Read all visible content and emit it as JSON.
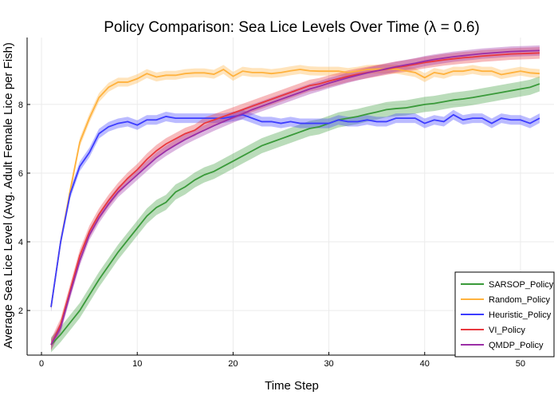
{
  "chart_data": {
    "type": "line",
    "title": "Policy Comparison: Sea Lice Levels Over Time (λ = 0.6)",
    "xlabel": "Time Step",
    "ylabel": "Average Sea Lice Level (Avg. Adult Female Lice per Fish)",
    "xlim": [
      -1.5,
      53.5
    ],
    "ylim": [
      0.7,
      9.95
    ],
    "xticks": [
      0,
      10,
      20,
      30,
      40,
      50
    ],
    "yticks": [
      2,
      4,
      6,
      8
    ],
    "grid": true,
    "legend_position": "bottom-right",
    "x_start": 1,
    "series": [
      {
        "name": "SARSOP_Policy",
        "color": "#3a9a3a",
        "band": 0.22,
        "values": [
          1.0,
          1.3,
          1.65,
          2.0,
          2.45,
          2.9,
          3.3,
          3.7,
          4.05,
          4.4,
          4.75,
          5.0,
          5.15,
          5.45,
          5.6,
          5.8,
          5.95,
          6.05,
          6.2,
          6.35,
          6.5,
          6.65,
          6.8,
          6.9,
          7.0,
          7.1,
          7.2,
          7.3,
          7.35,
          7.45,
          7.55,
          7.6,
          7.65,
          7.72,
          7.78,
          7.85,
          7.88,
          7.9,
          7.95,
          8.0,
          8.03,
          8.08,
          8.13,
          8.16,
          8.2,
          8.25,
          8.3,
          8.35,
          8.4,
          8.45,
          8.5,
          8.6
        ]
      },
      {
        "name": "Random_Policy",
        "color": "#ffb23e",
        "band": 0.13,
        "values": [
          2.1,
          4.0,
          5.5,
          6.9,
          7.6,
          8.2,
          8.5,
          8.65,
          8.65,
          8.75,
          8.9,
          8.8,
          8.85,
          8.85,
          8.9,
          8.92,
          8.92,
          8.88,
          9.02,
          8.82,
          8.97,
          8.93,
          8.93,
          8.9,
          8.93,
          8.98,
          9.02,
          8.98,
          8.97,
          8.97,
          8.97,
          8.93,
          8.97,
          9.02,
          9.03,
          9.03,
          9.03,
          8.98,
          8.93,
          8.78,
          8.93,
          8.88,
          8.97,
          8.97,
          9.02,
          8.97,
          8.97,
          8.87,
          8.92,
          8.97,
          8.92,
          8.9
        ]
      },
      {
        "name": "Heuristic_Policy",
        "color": "#3c3cff",
        "band": 0.14,
        "values": [
          2.1,
          4.0,
          5.4,
          6.2,
          6.6,
          7.15,
          7.35,
          7.45,
          7.5,
          7.4,
          7.55,
          7.55,
          7.65,
          7.6,
          7.6,
          7.6,
          7.6,
          7.6,
          7.6,
          7.65,
          7.7,
          7.6,
          7.5,
          7.5,
          7.45,
          7.5,
          7.45,
          7.45,
          7.45,
          7.45,
          7.55,
          7.5,
          7.5,
          7.55,
          7.5,
          7.5,
          7.6,
          7.6,
          7.6,
          7.45,
          7.55,
          7.5,
          7.7,
          7.55,
          7.6,
          7.6,
          7.45,
          7.6,
          7.55,
          7.55,
          7.45,
          7.6
        ]
      },
      {
        "name": "VI_Policy",
        "color": "#e8383e",
        "band": 0.17,
        "values": [
          1.0,
          1.6,
          2.6,
          3.6,
          4.3,
          4.8,
          5.2,
          5.55,
          5.85,
          6.1,
          6.4,
          6.65,
          6.85,
          7.0,
          7.15,
          7.25,
          7.45,
          7.55,
          7.65,
          7.75,
          7.85,
          7.95,
          8.05,
          8.15,
          8.25,
          8.35,
          8.45,
          8.55,
          8.6,
          8.68,
          8.75,
          8.82,
          8.88,
          8.93,
          8.98,
          9.03,
          9.08,
          9.12,
          9.17,
          9.22,
          9.26,
          9.3,
          9.33,
          9.36,
          9.38,
          9.41,
          9.43,
          9.45,
          9.47,
          9.48,
          9.49,
          9.5
        ]
      },
      {
        "name": "QMDP_Policy",
        "color": "#9b2fa6",
        "band": 0.15,
        "values": [
          1.0,
          1.5,
          2.5,
          3.45,
          4.2,
          4.7,
          5.1,
          5.45,
          5.7,
          5.95,
          6.2,
          6.45,
          6.65,
          6.82,
          6.98,
          7.12,
          7.25,
          7.38,
          7.5,
          7.62,
          7.73,
          7.85,
          7.95,
          8.05,
          8.15,
          8.25,
          8.35,
          8.45,
          8.53,
          8.62,
          8.7,
          8.78,
          8.85,
          8.92,
          8.98,
          9.04,
          9.1,
          9.15,
          9.2,
          9.26,
          9.31,
          9.35,
          9.39,
          9.42,
          9.45,
          9.48,
          9.5,
          9.52,
          9.54,
          9.55,
          9.56,
          9.57
        ]
      }
    ]
  }
}
